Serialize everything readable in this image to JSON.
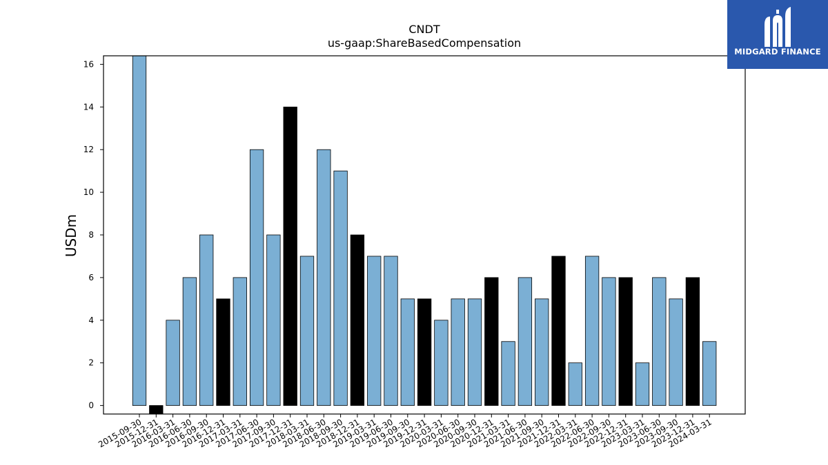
{
  "brand": {
    "name": "MIDGARD FINANCE",
    "bg_color": "#2a58ad",
    "icon": "midgard-logo-icon"
  },
  "chart_data": {
    "type": "bar",
    "title": "CNDT",
    "subtitle": "us-gaap:ShareBasedCompensation",
    "xlabel": "",
    "ylabel": "USDm",
    "ylim": [
      -0.4,
      16.4
    ],
    "yticks": [
      0,
      2,
      4,
      6,
      8,
      10,
      12,
      14,
      16
    ],
    "grid": false,
    "colors": {
      "regular": "#7bafd4",
      "highlight": "#000000",
      "edge": "#000000"
    },
    "categories": [
      "2015-09-30",
      "2015-12-31",
      "2016-03-31",
      "2016-06-30",
      "2016-09-30",
      "2016-12-31",
      "2017-03-31",
      "2017-06-30",
      "2017-09-30",
      "2017-12-31",
      "2018-03-31",
      "2018-06-30",
      "2018-09-30",
      "2018-12-31",
      "2019-03-31",
      "2019-06-30",
      "2019-09-30",
      "2019-12-31",
      "2020-03-31",
      "2020-06-30",
      "2020-09-30",
      "2020-12-31",
      "2021-03-31",
      "2021-06-30",
      "2021-09-30",
      "2021-12-31",
      "2022-03-31",
      "2022-06-30",
      "2022-09-30",
      "2022-12-31",
      "2023-03-31",
      "2023-06-30",
      "2023-09-30",
      "2023-12-31",
      "2024-03-31"
    ],
    "values": [
      17,
      -1,
      4,
      6,
      8,
      5,
      6,
      12,
      8,
      14,
      7,
      12,
      11,
      8,
      7,
      7,
      5,
      5,
      4,
      5,
      5,
      6,
      3,
      6,
      5,
      7,
      2,
      7,
      6,
      6,
      2,
      6,
      5,
      6,
      3
    ],
    "highlight": [
      false,
      true,
      false,
      false,
      false,
      true,
      false,
      false,
      false,
      true,
      false,
      false,
      false,
      true,
      false,
      false,
      false,
      true,
      false,
      false,
      false,
      true,
      false,
      false,
      false,
      true,
      false,
      false,
      false,
      true,
      false,
      false,
      false,
      true,
      false
    ]
  }
}
